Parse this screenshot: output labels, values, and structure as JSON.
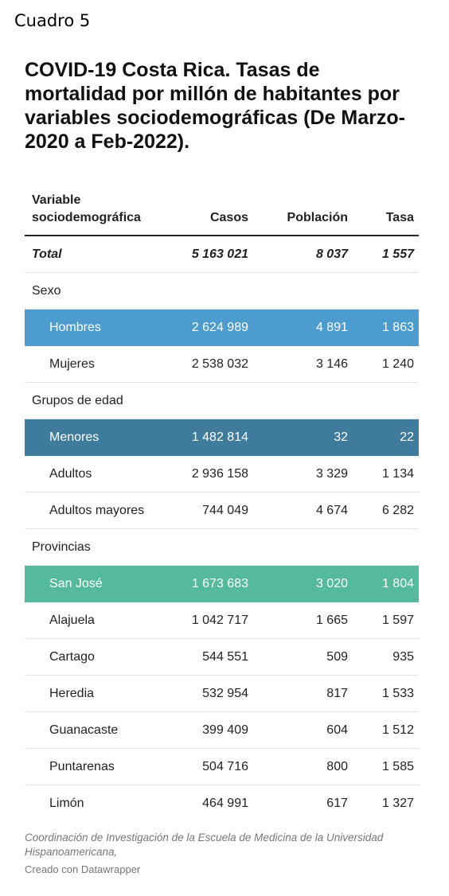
{
  "label": "Cuadro 5",
  "title": "COVID-19 Costa Rica. Tasas de mortalidad por millón de habitantes por variables sociodemográficas (De Marzo-2020 a Feb-2022).",
  "table": {
    "headers": {
      "variable_line1": "Variable",
      "variable_line2": "sociodemográfica",
      "casos": "Casos",
      "poblacion": "Población",
      "tasa": "Tasa"
    },
    "rows": [
      {
        "kind": "total",
        "name": "Total",
        "casos": "5 163 021",
        "poblacion": "8 037",
        "tasa": "1 557"
      },
      {
        "kind": "group",
        "name": "Sexo"
      },
      {
        "kind": "hl-blue",
        "name": "Hombres",
        "casos": "2 624 989",
        "poblacion": "4 891",
        "tasa": "1 863"
      },
      {
        "kind": "item",
        "name": "Mujeres",
        "casos": "2 538 032",
        "poblacion": "3 146",
        "tasa": "1 240"
      },
      {
        "kind": "group",
        "name": "Grupos de edad"
      },
      {
        "kind": "hl-dark",
        "name": "Menores",
        "casos": "1 482 814",
        "poblacion": "32",
        "tasa": "22"
      },
      {
        "kind": "item",
        "name": "Adultos",
        "casos": "2 936 158",
        "poblacion": "3 329",
        "tasa": "1 134"
      },
      {
        "kind": "item",
        "name": "Adultos mayores",
        "casos": "744 049",
        "poblacion": "4 674",
        "tasa": "6 282"
      },
      {
        "kind": "group",
        "name": "Provincias"
      },
      {
        "kind": "hl-green",
        "name": "San José",
        "casos": "1 673 683",
        "poblacion": "3 020",
        "tasa": "1 804"
      },
      {
        "kind": "item",
        "name": "Alajuela",
        "casos": "1 042 717",
        "poblacion": "1 665",
        "tasa": "1 597"
      },
      {
        "kind": "item",
        "name": "Cartago",
        "casos": "544 551",
        "poblacion": "509",
        "tasa": "935"
      },
      {
        "kind": "item",
        "name": "Heredia",
        "casos": "532 954",
        "poblacion": "817",
        "tasa": "1 533"
      },
      {
        "kind": "item",
        "name": "Guanacaste",
        "casos": "399 409",
        "poblacion": "604",
        "tasa": "1 512"
      },
      {
        "kind": "item",
        "name": "Puntarenas",
        "casos": "504 716",
        "poblacion": "800",
        "tasa": "1 585"
      },
      {
        "kind": "item",
        "name": "Limón",
        "casos": "464 991",
        "poblacion": "617",
        "tasa": "1 327"
      }
    ]
  },
  "source": "Coordinación de Investigación de la Escuela de Medicina de la Universidad Hispanoamericana,",
  "credit": "Creado con Datawrapper",
  "colors": {
    "highlight_sexo": "#4c9cd0",
    "highlight_edad": "#3e7b9c",
    "highlight_provincias": "#55b99c"
  }
}
